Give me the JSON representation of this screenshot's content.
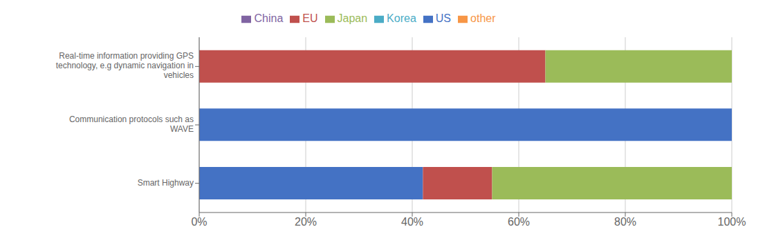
{
  "chart_data": {
    "type": "bar",
    "orientation": "horizontal",
    "stacked": true,
    "categories": [
      "Smart Highway",
      "Communication protocols such as\nWAVE",
      "Real-time information providing GPS\ntechnology, e.g  dynamic navigation in\nvehicles"
    ],
    "series": [
      {
        "name": "US",
        "color": "#4472C4",
        "values": [
          0.42,
          1.0,
          0.0
        ]
      },
      {
        "name": "EU",
        "color": "#C0504D",
        "values": [
          0.13,
          0.0,
          0.65
        ]
      },
      {
        "name": "Japan",
        "color": "#9BBB59",
        "values": [
          0.45,
          0.0,
          0.35
        ]
      },
      {
        "name": "China",
        "color": "#8064A2",
        "values": [
          0.0,
          0.0,
          0.0
        ]
      },
      {
        "name": "Korea",
        "color": "#4BACC6",
        "values": [
          0.0,
          0.0,
          0.0
        ]
      },
      {
        "name": "other",
        "color": "#F79646",
        "values": [
          0.0,
          0.0,
          0.0
        ]
      }
    ],
    "xlim": [
      0,
      1
    ],
    "xticks": [
      {
        "value": 0,
        "label": "0%"
      },
      {
        "value": 0.2,
        "label": "20%"
      },
      {
        "value": 0.4,
        "label": "40%"
      },
      {
        "value": 0.6,
        "label": "60%"
      },
      {
        "value": 0.8,
        "label": "80%"
      },
      {
        "value": 1.0,
        "label": "100%"
      }
    ],
    "grid": true,
    "legend": "top"
  }
}
